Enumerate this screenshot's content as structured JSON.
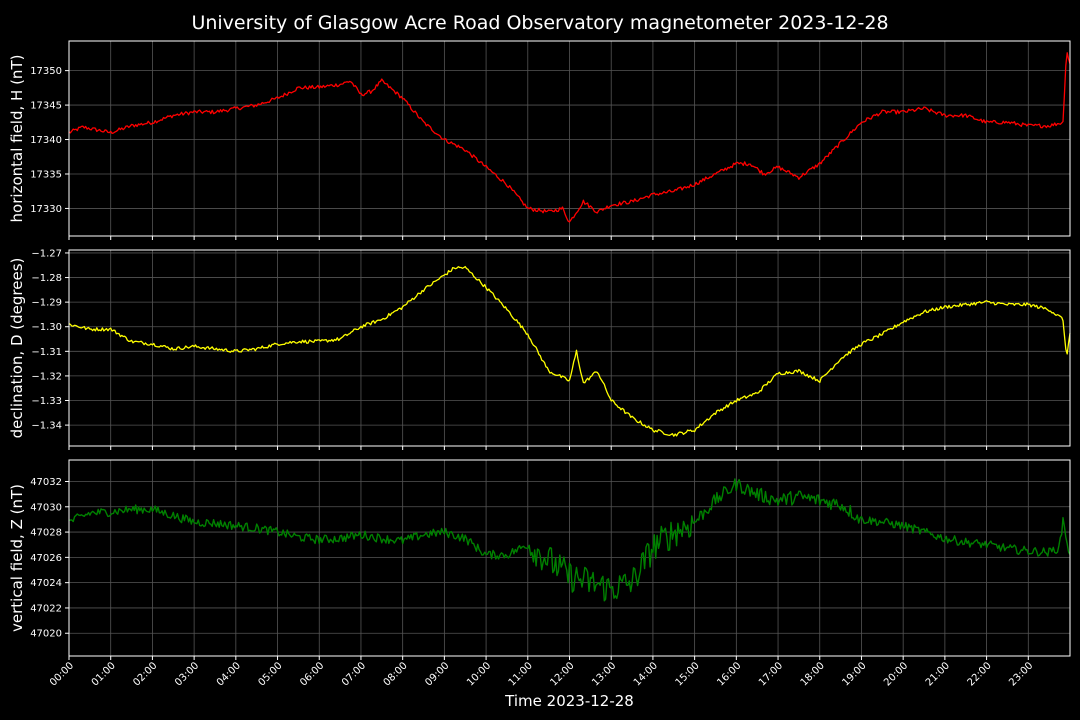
{
  "title": "University of Glasgow Acre Road Observatory magnetometer 2023-12-28",
  "xlabel": "Time 2023-12-28",
  "x_ticks": [
    "00:00",
    "01:00",
    "02:00",
    "03:00",
    "04:00",
    "05:00",
    "06:00",
    "07:00",
    "08:00",
    "09:00",
    "10:00",
    "11:00",
    "12:00",
    "13:00",
    "14:00",
    "15:00",
    "16:00",
    "17:00",
    "18:00",
    "19:00",
    "20:00",
    "21:00",
    "22:00",
    "23:00"
  ],
  "colors": {
    "background": "#000000",
    "grid": "#555555",
    "axes": "#ffffff",
    "H": "#ff0000",
    "D": "#ffff00",
    "Z": "#008000"
  },
  "chart_data": [
    {
      "type": "line",
      "ylabel": "horizontal field, H (nT)",
      "yticks": [
        "17330",
        "17335",
        "17340",
        "17345",
        "17350"
      ],
      "ylim": [
        17326.0,
        17354.3
      ],
      "xlim": [
        "00:00",
        "24:00"
      ],
      "grid": true,
      "x": [
        "00:00",
        "00:20",
        "01:00",
        "01:30",
        "02:00",
        "02:30",
        "03:00",
        "03:30",
        "04:00",
        "04:30",
        "05:00",
        "05:30",
        "06:00",
        "06:30",
        "06:45",
        "07:00",
        "07:15",
        "07:30",
        "08:00",
        "08:30",
        "09:00",
        "09:30",
        "10:00",
        "10:30",
        "11:00",
        "11:30",
        "11:50",
        "12:00",
        "12:20",
        "12:40",
        "13:00",
        "13:30",
        "14:00",
        "14:30",
        "15:00",
        "15:30",
        "16:00",
        "16:20",
        "16:40",
        "17:00",
        "17:30",
        "18:00",
        "18:30",
        "19:00",
        "19:30",
        "20:00",
        "20:30",
        "21:00",
        "21:30",
        "22:00",
        "22:30",
        "23:00",
        "23:30",
        "23:50",
        "23:55",
        "24:00"
      ],
      "series": [
        {
          "values": [
            17341.0,
            17341.8,
            17341.0,
            17342.0,
            17342.5,
            17343.5,
            17344.0,
            17344.0,
            17344.5,
            17345.0,
            17346.0,
            17347.5,
            17347.6,
            17348.0,
            17348.5,
            17346.5,
            17347.0,
            17348.5,
            17346.0,
            17342.5,
            17340.0,
            17338.5,
            17336.0,
            17333.5,
            17330.0,
            17329.5,
            17330.0,
            17328.0,
            17331.0,
            17329.5,
            17330.5,
            17331.0,
            17332.0,
            17332.5,
            17333.5,
            17335.0,
            17336.5,
            17336.5,
            17335.0,
            17336.0,
            17334.5,
            17336.5,
            17339.5,
            17342.5,
            17344.0,
            17344.0,
            17344.5,
            17343.5,
            17343.5,
            17342.5,
            17342.5,
            17342.0,
            17342.0,
            17342.5,
            17353.0,
            17351.0
          ]
        }
      ]
    },
    {
      "type": "line",
      "ylabel": "declination, D (degrees)",
      "yticks": [
        "−1.34",
        "−1.33",
        "−1.32",
        "−1.31",
        "−1.30",
        "−1.29",
        "−1.28",
        "−1.27"
      ],
      "ylim": [
        -1.3485,
        -1.2688
      ],
      "xlim": [
        "00:00",
        "24:00"
      ],
      "grid": true,
      "x": [
        "00:00",
        "00:30",
        "01:00",
        "01:30",
        "02:00",
        "02:30",
        "03:00",
        "03:30",
        "04:00",
        "04:30",
        "05:00",
        "05:30",
        "06:00",
        "06:30",
        "07:00",
        "07:30",
        "08:00",
        "08:30",
        "09:00",
        "09:15",
        "09:30",
        "10:00",
        "10:30",
        "11:00",
        "11:30",
        "12:00",
        "12:10",
        "12:20",
        "12:40",
        "13:00",
        "13:30",
        "14:00",
        "14:30",
        "15:00",
        "15:30",
        "16:00",
        "16:30",
        "17:00",
        "17:30",
        "18:00",
        "18:30",
        "19:00",
        "19:30",
        "20:00",
        "20:30",
        "21:00",
        "21:30",
        "22:00",
        "22:30",
        "23:00",
        "23:30",
        "23:45",
        "23:50",
        "23:55",
        "24:00"
      ],
      "series": [
        {
          "values": [
            -1.299,
            -1.301,
            -1.301,
            -1.306,
            -1.307,
            -1.309,
            -1.308,
            -1.309,
            -1.31,
            -1.309,
            -1.307,
            -1.306,
            -1.306,
            -1.305,
            -1.3,
            -1.297,
            -1.292,
            -1.285,
            -1.279,
            -1.276,
            -1.276,
            -1.284,
            -1.293,
            -1.303,
            -1.318,
            -1.322,
            -1.31,
            -1.323,
            -1.318,
            -1.33,
            -1.337,
            -1.342,
            -1.344,
            -1.342,
            -1.335,
            -1.33,
            -1.327,
            -1.319,
            -1.318,
            -1.322,
            -1.313,
            -1.307,
            -1.303,
            -1.298,
            -1.294,
            -1.292,
            -1.291,
            -1.29,
            -1.291,
            -1.291,
            -1.293,
            -1.296,
            -1.297,
            -1.313,
            -1.302
          ]
        }
      ]
    },
    {
      "type": "line",
      "ylabel": "vertical field, Z (nT)",
      "yticks": [
        "47020",
        "47022",
        "47024",
        "47026",
        "47028",
        "47030",
        "47032"
      ],
      "ylim": [
        47018.2,
        47033.7
      ],
      "xlim": [
        "00:00",
        "24:00"
      ],
      "grid": true,
      "x": [
        "00:00",
        "00:30",
        "01:00",
        "01:30",
        "02:00",
        "02:30",
        "03:00",
        "03:30",
        "04:00",
        "04:30",
        "05:00",
        "05:30",
        "06:00",
        "06:30",
        "07:00",
        "07:30",
        "08:00",
        "08:30",
        "09:00",
        "09:30",
        "10:00",
        "10:30",
        "11:00",
        "11:30",
        "12:00",
        "12:30",
        "13:00",
        "13:30",
        "14:00",
        "14:30",
        "15:00",
        "15:30",
        "16:00",
        "16:30",
        "17:00",
        "17:30",
        "18:00",
        "18:30",
        "19:00",
        "19:30",
        "20:00",
        "20:30",
        "21:00",
        "21:30",
        "22:00",
        "22:30",
        "23:00",
        "23:30",
        "23:45",
        "23:50",
        "24:00"
      ],
      "series": [
        {
          "values": [
            47028.8,
            47029.5,
            47029.6,
            47029.8,
            47029.8,
            47029.3,
            47028.8,
            47028.7,
            47028.5,
            47028.3,
            47028.0,
            47027.6,
            47027.4,
            47027.5,
            47027.8,
            47027.5,
            47027.3,
            47027.8,
            47028.0,
            47027.5,
            47026.2,
            47026.2,
            47027.0,
            47025.8,
            47024.5,
            47024.0,
            47023.5,
            47024.0,
            47026.8,
            47028.0,
            47028.8,
            47030.5,
            47031.8,
            47031.0,
            47030.5,
            47030.8,
            47030.5,
            47030.2,
            47029.0,
            47028.8,
            47028.5,
            47028.0,
            47027.5,
            47027.2,
            47027.0,
            47026.7,
            47026.5,
            47026.4,
            47026.8,
            47029.0,
            47026.0
          ]
        }
      ]
    }
  ]
}
